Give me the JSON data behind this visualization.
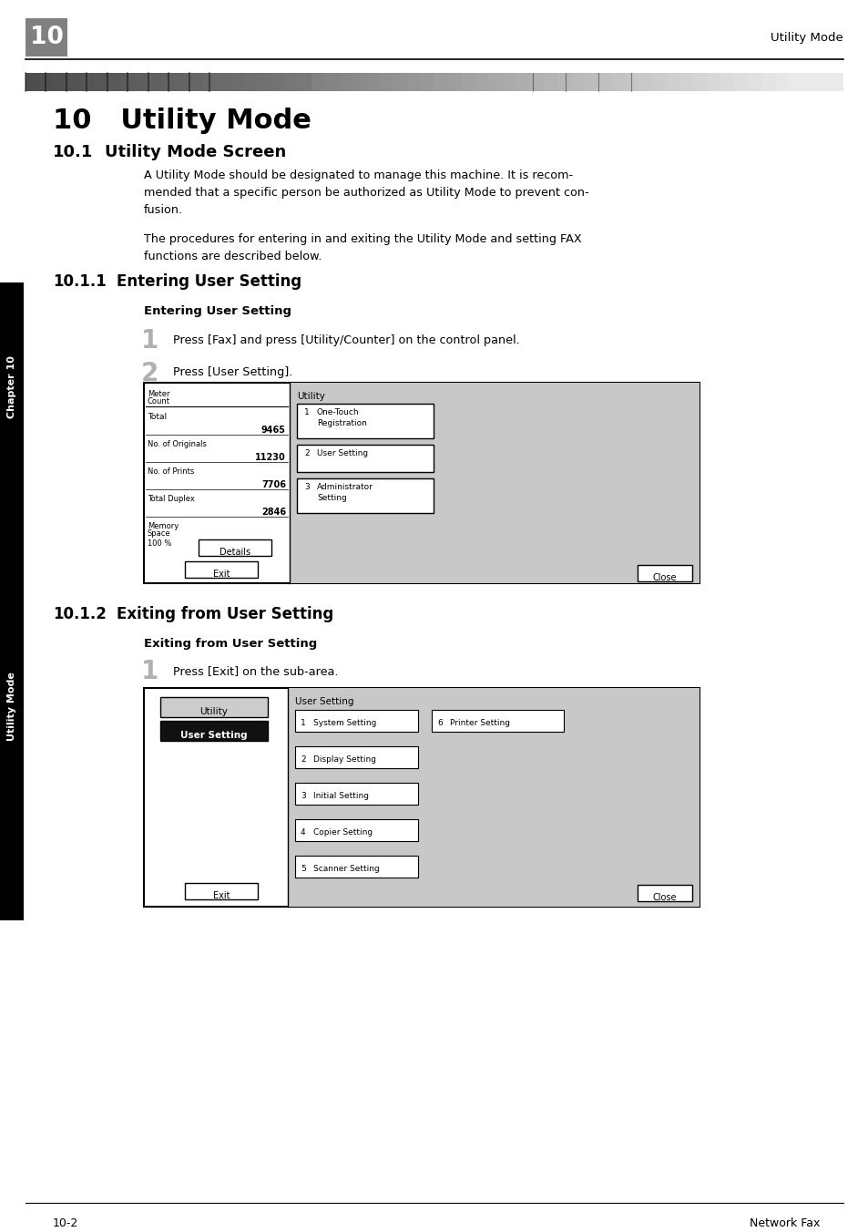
{
  "page_number": "10",
  "header_right": "Utility Mode",
  "chapter_title": "10   Utility Mode",
  "section1_num": "10.1",
  "section1_title": "Utility Mode Screen",
  "section1_body1": "A Utility Mode should be designated to manage this machine. It is recom-\nmended that a specific person be authorized as Utility Mode to prevent con-\nfusion.",
  "section1_body2": "The procedures for entering in and exiting the Utility Mode and setting FAX\nfunctions are described below.",
  "section2_num": "10.1.1",
  "section2_title": "Entering User Setting",
  "section2_bold": "Entering User Setting",
  "step1_text": "Press [Fax] and press [Utility/Counter] on the control panel.",
  "step2_text": "Press [User Setting].",
  "section3_num": "10.1.2",
  "section3_title": "Exiting from User Setting",
  "section3_bold": "Exiting from User Setting",
  "step3_text": "Press [Exit] on the sub-area.",
  "footer_left": "10-2",
  "footer_right": "Network Fax",
  "sidebar_text1": "Chapter 10",
  "sidebar_text2": "Utility Mode",
  "screen1_utility_items": [
    "One-Touch\nRegistration",
    "User Setting",
    "Administrator\nSetting"
  ],
  "screen2_left_items": [
    "System Setting",
    "Display Setting",
    "Initial Setting",
    "Copier Setting",
    "Scanner Setting"
  ],
  "screen2_right_item": "Printer Setting"
}
